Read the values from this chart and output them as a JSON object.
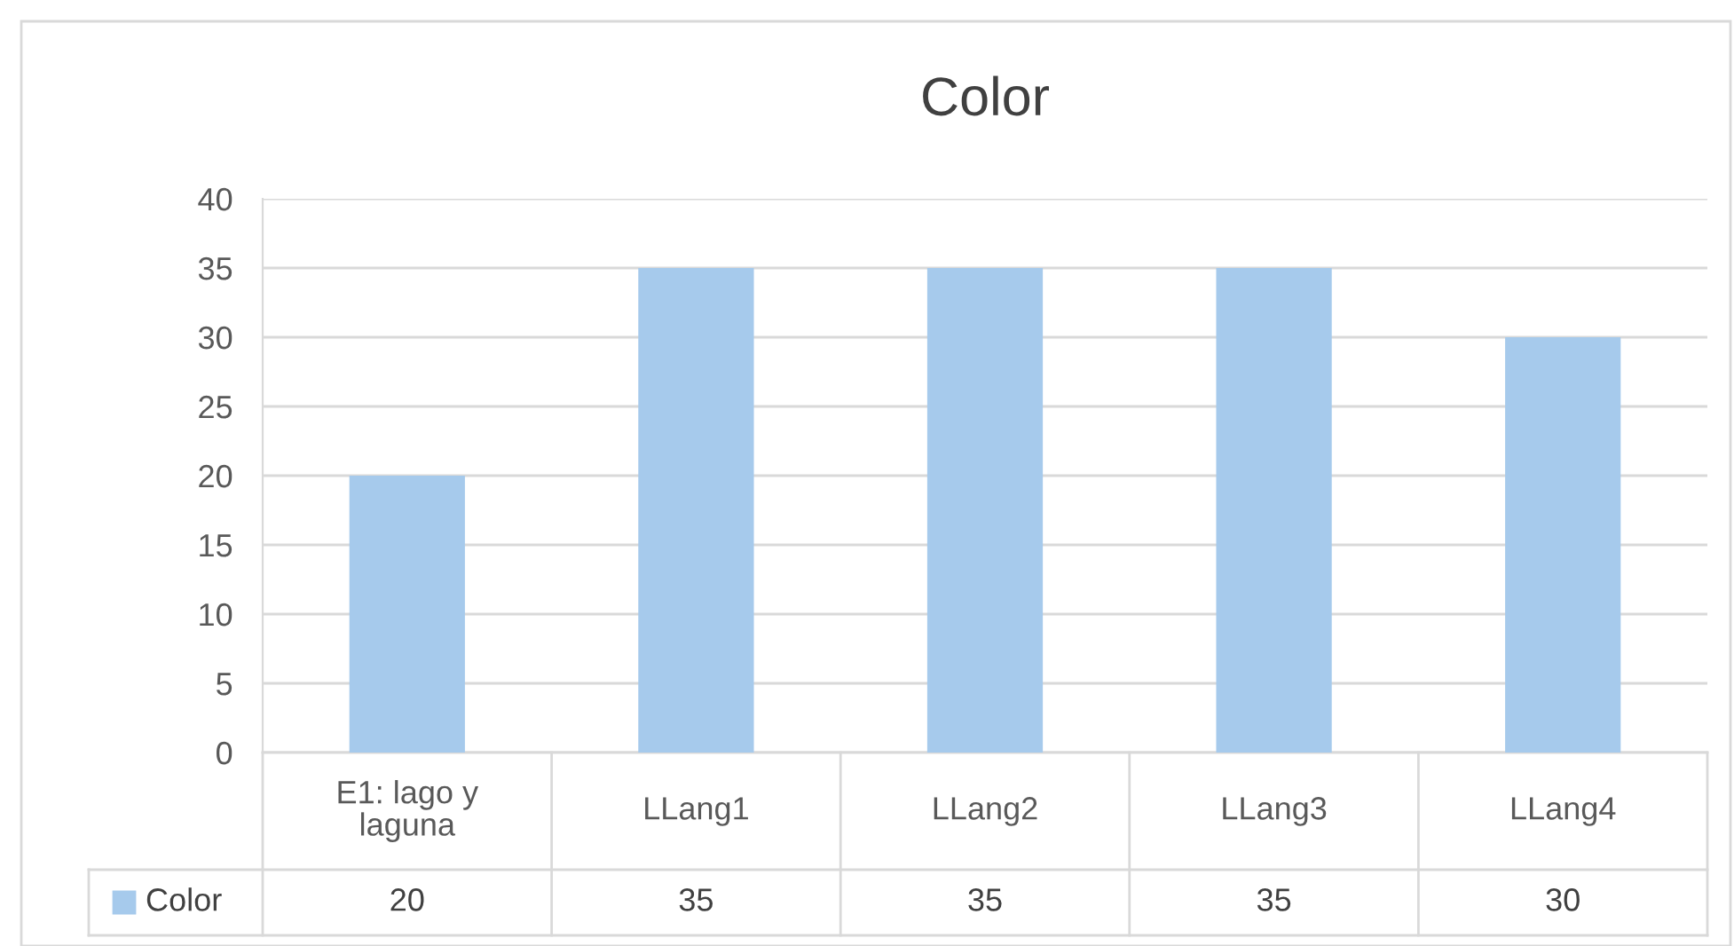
{
  "chart_data": {
    "type": "bar",
    "title": "Color",
    "categories": [
      "E1: lago y\nlaguna",
      "LLang1",
      "LLang2",
      "LLang3",
      "LLang4"
    ],
    "series": [
      {
        "name": "Color",
        "color": "#a6caec",
        "values": [
          20,
          35,
          35,
          35,
          30
        ]
      }
    ],
    "ylim": [
      0,
      40
    ],
    "yticks": [
      0,
      5,
      10,
      15,
      20,
      25,
      30,
      35,
      40
    ],
    "grid": "y",
    "legend": "bottom",
    "data_labels": true
  }
}
